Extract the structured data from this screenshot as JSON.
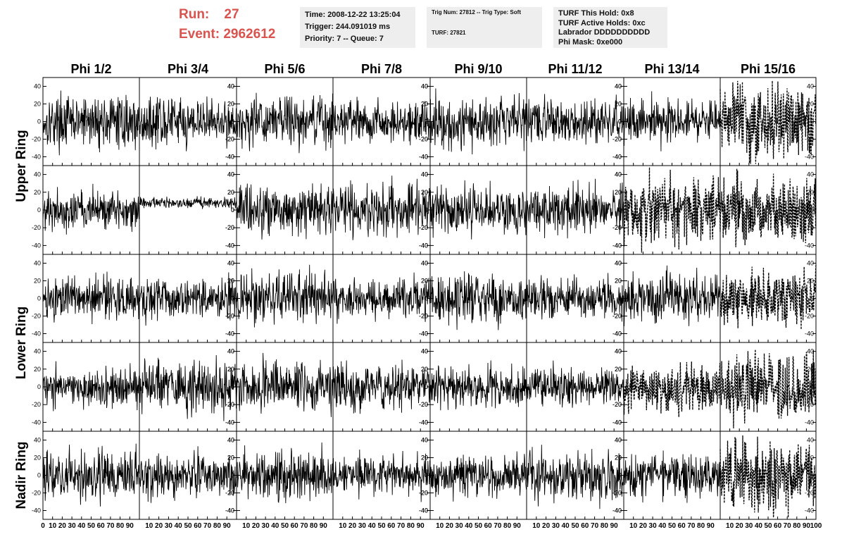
{
  "header": {
    "run_label": "Run:",
    "run_value": "27",
    "event_label": "Event:",
    "event_value": "2962612",
    "time_box": [
      "Time: 2008-12-22 13:25:04",
      "Trigger: 244.091019 ms",
      "Priority: 7 -- Queue: 7"
    ],
    "trig_box": [
      "Trig Num: 27812 -- Trig Type: Soft",
      "TURF: 27821"
    ],
    "turf_box": [
      "TURF This Hold: 0x8",
      "TURF Active Holds: 0xc",
      "Labrador DDDDDDDDDD",
      "Phi Mask: 0xe000"
    ],
    "accent_color": "#d9534f",
    "box_color": "#eeeeee"
  },
  "chart_data": {
    "type": "line",
    "layout": "grid",
    "columns": [
      "Phi 1/2",
      "Phi 3/4",
      "Phi 5/6",
      "Phi 7/8",
      "Phi 9/10",
      "Phi 11/12",
      "Phi 13/14",
      "Phi 15/16"
    ],
    "rows": [
      "Upper Ring",
      "Upper Ring",
      "Lower Ring",
      "Lower Ring",
      "Nadir Ring"
    ],
    "row_label_texts": [
      "Upper Ring",
      "Lower Ring",
      "Nadir Ring"
    ],
    "ylim": [
      -50,
      50
    ],
    "yticks": [
      -40,
      -20,
      0,
      20,
      40
    ],
    "xlim": [
      0,
      100
    ],
    "xticks": [
      0,
      10,
      20,
      30,
      40,
      50,
      60,
      70,
      80,
      90,
      100
    ],
    "xtick_labels": [
      "0",
      "10",
      "20",
      "30",
      "40",
      "50",
      "60",
      "70",
      "80",
      "90",
      "100"
    ],
    "samples_per_trace": 260,
    "panels": [
      {
        "row": 0,
        "col": 0,
        "amplitude": 14,
        "style": "solid"
      },
      {
        "row": 0,
        "col": 1,
        "amplitude": 13,
        "style": "solid"
      },
      {
        "row": 0,
        "col": 2,
        "amplitude": 14,
        "style": "solid"
      },
      {
        "row": 0,
        "col": 3,
        "amplitude": 11,
        "style": "solid"
      },
      {
        "row": 0,
        "col": 4,
        "amplitude": 15,
        "style": "solid"
      },
      {
        "row": 0,
        "col": 5,
        "amplitude": 12,
        "style": "solid"
      },
      {
        "row": 0,
        "col": 6,
        "amplitude": 12,
        "style": "solid"
      },
      {
        "row": 0,
        "col": 7,
        "amplitude": 20,
        "style": "dashed"
      },
      {
        "row": 1,
        "col": 0,
        "amplitude": 11,
        "style": "solid"
      },
      {
        "row": 1,
        "col": 1,
        "amplitude": 3,
        "style": "solid",
        "offset": 8
      },
      {
        "row": 1,
        "col": 2,
        "amplitude": 14,
        "style": "solid"
      },
      {
        "row": 1,
        "col": 3,
        "amplitude": 14,
        "style": "solid"
      },
      {
        "row": 1,
        "col": 4,
        "amplitude": 13,
        "style": "solid"
      },
      {
        "row": 1,
        "col": 5,
        "amplitude": 13,
        "style": "solid"
      },
      {
        "row": 1,
        "col": 6,
        "amplitude": 18,
        "style": "dashed"
      },
      {
        "row": 1,
        "col": 7,
        "amplitude": 18,
        "style": "dashed"
      },
      {
        "row": 2,
        "col": 0,
        "amplitude": 12,
        "style": "solid"
      },
      {
        "row": 2,
        "col": 1,
        "amplitude": 13,
        "style": "solid"
      },
      {
        "row": 2,
        "col": 2,
        "amplitude": 14,
        "style": "solid"
      },
      {
        "row": 2,
        "col": 3,
        "amplitude": 11,
        "style": "solid"
      },
      {
        "row": 2,
        "col": 4,
        "amplitude": 13,
        "style": "solid"
      },
      {
        "row": 2,
        "col": 5,
        "amplitude": 11,
        "style": "solid"
      },
      {
        "row": 2,
        "col": 6,
        "amplitude": 14,
        "style": "solid"
      },
      {
        "row": 2,
        "col": 7,
        "amplitude": 15,
        "style": "dashed"
      },
      {
        "row": 3,
        "col": 0,
        "amplitude": 11,
        "style": "solid"
      },
      {
        "row": 3,
        "col": 1,
        "amplitude": 14,
        "style": "solid"
      },
      {
        "row": 3,
        "col": 2,
        "amplitude": 14,
        "style": "solid"
      },
      {
        "row": 3,
        "col": 3,
        "amplitude": 13,
        "style": "solid"
      },
      {
        "row": 3,
        "col": 4,
        "amplitude": 12,
        "style": "solid"
      },
      {
        "row": 3,
        "col": 5,
        "amplitude": 11,
        "style": "solid"
      },
      {
        "row": 3,
        "col": 6,
        "amplitude": 14,
        "style": "dashed"
      },
      {
        "row": 3,
        "col": 7,
        "amplitude": 18,
        "style": "dashed"
      },
      {
        "row": 4,
        "col": 0,
        "amplitude": 13,
        "style": "solid"
      },
      {
        "row": 4,
        "col": 1,
        "amplitude": 12,
        "style": "solid"
      },
      {
        "row": 4,
        "col": 2,
        "amplitude": 13,
        "style": "solid"
      },
      {
        "row": 4,
        "col": 3,
        "amplitude": 11,
        "style": "solid"
      },
      {
        "row": 4,
        "col": 4,
        "amplitude": 12,
        "style": "solid"
      },
      {
        "row": 4,
        "col": 5,
        "amplitude": 14,
        "style": "solid"
      },
      {
        "row": 4,
        "col": 6,
        "amplitude": 12,
        "style": "solid"
      },
      {
        "row": 4,
        "col": 7,
        "amplitude": 20,
        "style": "dashed"
      }
    ]
  }
}
